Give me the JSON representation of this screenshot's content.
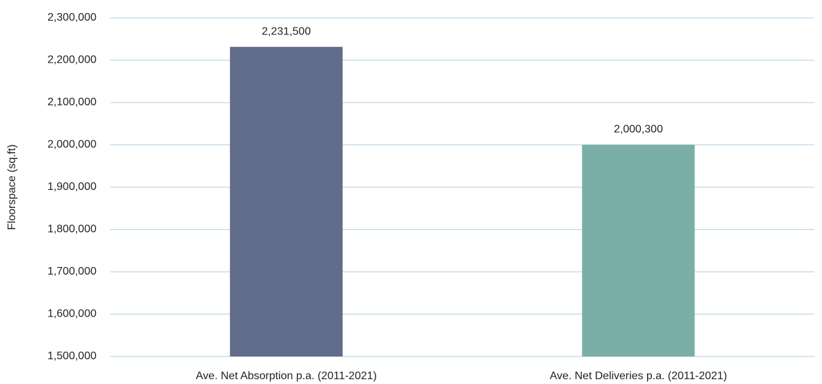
{
  "chart_data": {
    "type": "bar",
    "y_label": "Floorspace (sq.ft)",
    "categories": [
      "Ave. Net Absorption p.a. (2011-2021)",
      "Ave. Net Deliveries p.a. (2011-2021)"
    ],
    "values": [
      2231500,
      2000300
    ],
    "value_labels": [
      "2,231,500",
      "2,000,300"
    ],
    "colors": [
      "#616b8a",
      "#7aafa7"
    ],
    "ylim": [
      1500000,
      2300000
    ],
    "yticks": [
      {
        "value": 1500000,
        "label": "1,500,000"
      },
      {
        "value": 1600000,
        "label": "1,600,000"
      },
      {
        "value": 1700000,
        "label": "1,700,000"
      },
      {
        "value": 1800000,
        "label": "1,800,000"
      },
      {
        "value": 1900000,
        "label": "1,900,000"
      },
      {
        "value": 2000000,
        "label": "2,000,000"
      },
      {
        "value": 2100000,
        "label": "2,100,000"
      },
      {
        "value": 2200000,
        "label": "2,200,000"
      },
      {
        "value": 2300000,
        "label": "2,300,000"
      }
    ],
    "grid": true
  }
}
